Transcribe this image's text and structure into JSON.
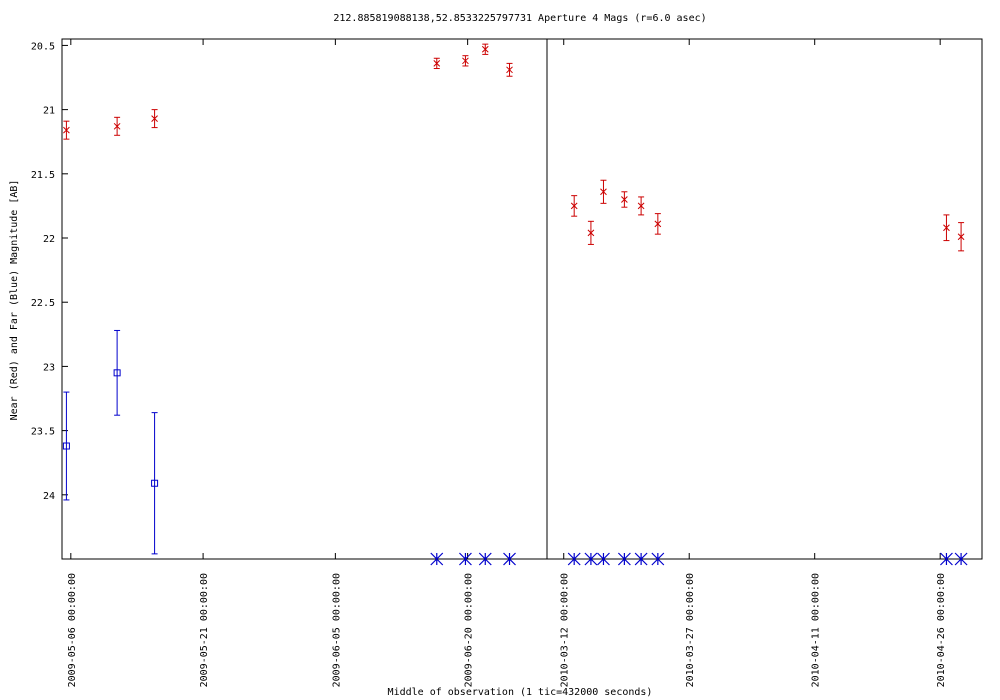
{
  "chart_data": {
    "type": "scatter",
    "title": "212.885819088138,52.8533225797731   Aperture 4 Mags (r=6.0 asec)",
    "xlabel": "Middle of observation (1 tic=432000 seconds)",
    "ylabel": "Near (Red) and Far (Blue) Magnitude [AB]",
    "y_inverted": true,
    "ylim": [
      24.5,
      20.45
    ],
    "y_ticks": [
      "20.5",
      "21",
      "21.5",
      "22",
      "22.5",
      "23",
      "23.5",
      "24"
    ],
    "panels": [
      {
        "x_range_days": [
          "2009-05-05",
          "2009-06-29"
        ],
        "x_ticks": [
          "2009-05-06 00:00:00",
          "2009-05-21 00:00:00",
          "2009-06-05 00:00:00",
          "2009-06-20 00:00:00"
        ],
        "series": [
          {
            "color": "#cc0000",
            "marker": "x",
            "points": [
              {
                "x": "2009-05-05 12:00",
                "y": 21.16,
                "err": 0.07
              },
              {
                "x": "2009-05-11 06:00",
                "y": 21.13,
                "err": 0.07
              },
              {
                "x": "2009-05-15 12:00",
                "y": 21.07,
                "err": 0.07
              },
              {
                "x": "2009-06-16 12:00",
                "y": 20.64,
                "err": 0.04
              },
              {
                "x": "2009-06-19 18:00",
                "y": 20.62,
                "err": 0.04
              },
              {
                "x": "2009-06-22 00:00",
                "y": 20.53,
                "err": 0.04
              },
              {
                "x": "2009-06-24 18:00",
                "y": 20.69,
                "err": 0.05
              }
            ]
          },
          {
            "color": "#0000cc",
            "marker": "square",
            "points": [
              {
                "x": "2009-05-05 12:00",
                "y": 23.62,
                "err": 0.42
              },
              {
                "x": "2009-05-11 06:00",
                "y": 23.05,
                "err": 0.33
              },
              {
                "x": "2009-05-15 12:00",
                "y": 23.91,
                "err": 0.55
              }
            ]
          },
          {
            "color": "#0000cc",
            "marker": "asterisk",
            "note": "limit",
            "points": [
              {
                "x": "2009-06-16 12:00",
                "y": 24.5
              },
              {
                "x": "2009-06-19 18:00",
                "y": 24.5
              },
              {
                "x": "2009-06-22 00:00",
                "y": 24.5
              },
              {
                "x": "2009-06-24 18:00",
                "y": 24.5
              }
            ]
          }
        ]
      },
      {
        "x_range_days": [
          "2010-03-10",
          "2010-05-01"
        ],
        "x_ticks": [
          "2010-03-12 00:00:00",
          "2010-03-27 00:00:00",
          "2010-04-11 00:00:00",
          "2010-04-26 00:00:00"
        ],
        "series": [
          {
            "color": "#cc0000",
            "marker": "x",
            "points": [
              {
                "x": "2010-03-13 06:00",
                "y": 21.75,
                "err": 0.08
              },
              {
                "x": "2010-03-15 06:00",
                "y": 21.96,
                "err": 0.09
              },
              {
                "x": "2010-03-16 18:00",
                "y": 21.64,
                "err": 0.09
              },
              {
                "x": "2010-03-19 06:00",
                "y": 21.7,
                "err": 0.06
              },
              {
                "x": "2010-03-21 06:00",
                "y": 21.75,
                "err": 0.07
              },
              {
                "x": "2010-03-23 06:00",
                "y": 21.89,
                "err": 0.08
              },
              {
                "x": "2010-04-26 18:00",
                "y": 21.92,
                "err": 0.1
              },
              {
                "x": "2010-04-28 12:00",
                "y": 21.99,
                "err": 0.11
              }
            ]
          },
          {
            "color": "#0000cc",
            "marker": "asterisk",
            "note": "limit",
            "points": [
              {
                "x": "2010-03-13 06:00",
                "y": 24.5
              },
              {
                "x": "2010-03-15 06:00",
                "y": 24.5
              },
              {
                "x": "2010-03-16 18:00",
                "y": 24.5
              },
              {
                "x": "2010-03-19 06:00",
                "y": 24.5
              },
              {
                "x": "2010-03-21 06:00",
                "y": 24.5
              },
              {
                "x": "2010-03-23 06:00",
                "y": 24.5
              },
              {
                "x": "2010-04-26 18:00",
                "y": 24.5
              },
              {
                "x": "2010-04-28 12:00",
                "y": 24.5
              }
            ]
          }
        ]
      }
    ]
  }
}
